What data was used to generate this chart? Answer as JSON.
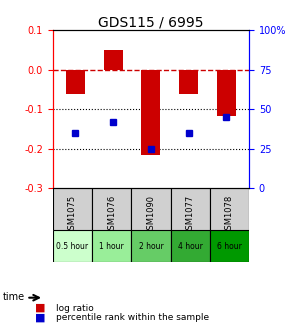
{
  "title": "GDS115 / 6995",
  "categories": [
    "GSM1075",
    "GSM1076",
    "GSM1090",
    "GSM1077",
    "GSM1078"
  ],
  "time_labels": [
    "0.5 hour",
    "1 hour",
    "2 hour",
    "4 hour",
    "6 hour"
  ],
  "time_colors": [
    "#ccffcc",
    "#99ee99",
    "#66cc66",
    "#33aa33",
    "#009900"
  ],
  "log_ratio": [
    -0.062,
    0.05,
    -0.215,
    -0.062,
    -0.118
  ],
  "percentile": [
    35,
    42,
    25,
    35,
    45
  ],
  "bar_color": "#cc0000",
  "dot_color": "#0000cc",
  "ylim_left": [
    -0.3,
    0.1
  ],
  "ylim_right": [
    0,
    100
  ],
  "yticks_left": [
    0.1,
    0.0,
    -0.1,
    -0.2,
    -0.3
  ],
  "yticks_right": [
    100,
    75,
    50,
    25,
    0
  ],
  "hline_color": "#cc0000",
  "dotline_color": "#000000",
  "bg_color": "#ffffff",
  "plot_bg": "#ffffff",
  "legend_log": "log ratio",
  "legend_pct": "percentile rank within the sample",
  "bar_width": 0.5
}
